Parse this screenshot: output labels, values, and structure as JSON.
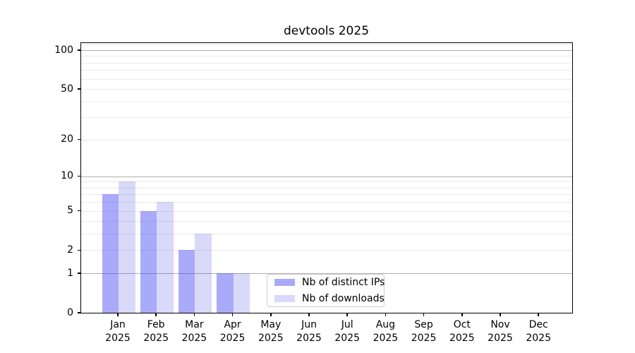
{
  "chart_data": {
    "type": "bar",
    "title": "devtools 2025",
    "categories": [
      "Jan",
      "Feb",
      "Mar",
      "Apr",
      "May",
      "Jun",
      "Jul",
      "Aug",
      "Sep",
      "Oct",
      "Nov",
      "Dec"
    ],
    "year_label": "2025",
    "series": [
      {
        "name": "Nb of distinct IPs",
        "color": "rgba(66,66,244,0.45)",
        "values": [
          7,
          5,
          2,
          1,
          0,
          0,
          0,
          0,
          0,
          0,
          0,
          0
        ]
      },
      {
        "name": "Nb of downloads",
        "color": "rgba(32,32,226,0.17)",
        "values": [
          9,
          6,
          3,
          1,
          0,
          0,
          0,
          0,
          0,
          0,
          0,
          0
        ]
      }
    ],
    "y_axis": {
      "scale": "log1p",
      "ticks": [
        0,
        1,
        2,
        5,
        10,
        20,
        50,
        100
      ],
      "major_gridlines": [
        1,
        10,
        100
      ],
      "minor_gridlines": [
        2,
        3,
        4,
        5,
        6,
        7,
        8,
        9,
        20,
        30,
        40,
        50,
        60,
        70,
        80,
        90,
        110
      ],
      "ylim": [
        0,
        114
      ]
    },
    "xlabel": "",
    "ylabel": "",
    "grid": true,
    "legend": {
      "position": "lower center-left"
    },
    "colors": {
      "grid_major": "#b0b0b0",
      "grid_minor": "#e9e9e9",
      "axis": "#000000",
      "legend_border": "#cccccc",
      "background": "#ffffff"
    }
  }
}
